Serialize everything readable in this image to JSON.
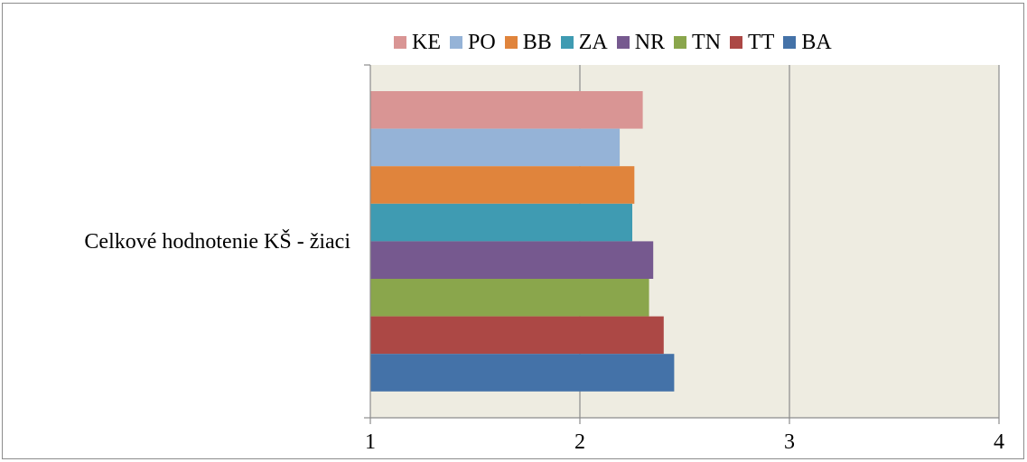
{
  "chart_data": {
    "type": "bar",
    "orientation": "horizontal",
    "categories": [
      "Celkové hodnotenie KŠ - žiaci"
    ],
    "series": [
      {
        "name": "KE",
        "color": "#d99594",
        "values": [
          2.3
        ]
      },
      {
        "name": "PO",
        "color": "#95b3d7",
        "values": [
          2.19
        ]
      },
      {
        "name": "BB",
        "color": "#e0843c",
        "values": [
          2.26
        ]
      },
      {
        "name": "ZA",
        "color": "#3f9bb2",
        "values": [
          2.25
        ]
      },
      {
        "name": "NR",
        "color": "#76598f",
        "values": [
          2.35
        ]
      },
      {
        "name": "TN",
        "color": "#8aa64c",
        "values": [
          2.33
        ]
      },
      {
        "name": "TT",
        "color": "#ac4845",
        "values": [
          2.4
        ]
      },
      {
        "name": "BA",
        "color": "#4472a8",
        "values": [
          2.45
        ]
      }
    ],
    "xlim": [
      1,
      4
    ],
    "xticks": [
      "1",
      "2",
      "3",
      "4"
    ],
    "gridlines": "vertical",
    "legend_position": "top",
    "plot_background": "#eeece1"
  }
}
